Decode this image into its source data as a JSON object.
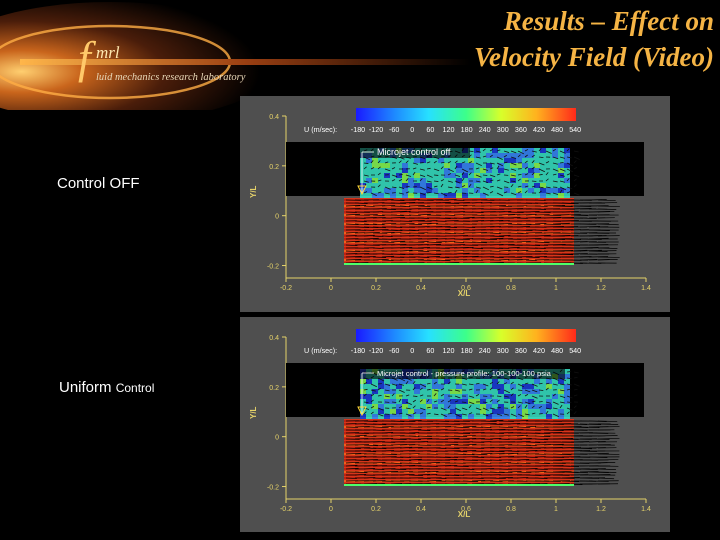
{
  "logo": {
    "letter_f": "f",
    "abbrev": "mrl",
    "subtitle": "luid mechanics research laboratory"
  },
  "title": {
    "line1": "Results –  Effect on",
    "line2": "Velocity Field (Video)"
  },
  "colors": {
    "title": "#f5b445",
    "panel_bg": "#4f4f4f",
    "axis": "#e6d36a"
  },
  "panels": [
    {
      "side_label": "Control OFF",
      "side_label_small": "",
      "annotation": "Microjet control off",
      "legend_label": "U (m/sec):",
      "legend_ticks": [
        "-180",
        "-120",
        "-60",
        "0",
        "60",
        "120",
        "180",
        "240",
        "300",
        "360",
        "420",
        "480",
        "540"
      ],
      "y_label": "Y/L",
      "x_label": "X/L",
      "y_ticks": [
        "0.4",
        "0.2",
        "0",
        "-0.2"
      ],
      "x_ticks": [
        "-0.2",
        "0",
        "0.2",
        "0.4",
        "0.6",
        "0.8",
        "1",
        "1.2",
        "1.4"
      ]
    },
    {
      "side_label": "Uniform",
      "side_label_small": "Control",
      "annotation": "Microjet control - pressure profile: 100-100-100 psia",
      "legend_label": "U (m/sec):",
      "legend_ticks": [
        "-180",
        "-120",
        "-60",
        "0",
        "60",
        "120",
        "180",
        "240",
        "300",
        "360",
        "420",
        "480",
        "540"
      ],
      "y_label": "Y/L",
      "x_label": "X/L",
      "y_ticks": [
        "0.4",
        "0.2",
        "0",
        "-0.2"
      ],
      "x_ticks": [
        "-0.2",
        "0",
        "0.2",
        "0.4",
        "0.6",
        "0.8",
        "1",
        "1.2",
        "1.4"
      ]
    }
  ]
}
